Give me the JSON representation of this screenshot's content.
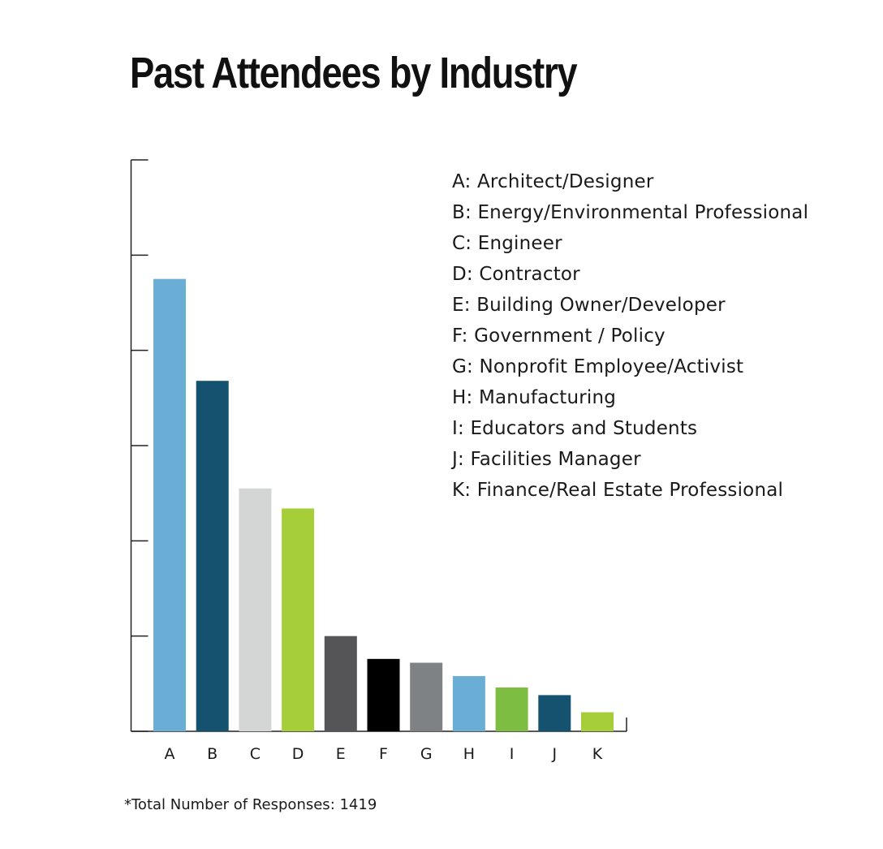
{
  "title": "Past Attendees by Industry",
  "footnote": "*Total Number of Responses: 1419",
  "chart_data": {
    "type": "bar",
    "title": "Past Attendees by Industry",
    "xlabel": "",
    "ylabel": "",
    "categories": [
      "A",
      "B",
      "C",
      "D",
      "E",
      "F",
      "G",
      "H",
      "I",
      "J",
      "K"
    ],
    "values": [
      4.75,
      3.68,
      2.55,
      2.34,
      1.0,
      0.76,
      0.72,
      0.58,
      0.46,
      0.38,
      0.2
    ],
    "colors": [
      "#6aaed6",
      "#155270",
      "#d4d5d5",
      "#a6ce39",
      "#555558",
      "#000000",
      "#7f8284",
      "#6aaed6",
      "#7dbd42",
      "#155270",
      "#a6ce39"
    ],
    "ylim": [
      0,
      6
    ],
    "grid": false,
    "legend": {
      "placement": "top-right",
      "entries": [
        "A: Architect/Designer",
        "B: Energy/Environmental Professional",
        "C: Engineer",
        "D: Contractor",
        "E: Building Owner/Developer",
        "F: Government / Policy",
        "G: Nonprofit Employee/Activist",
        "H: Manufacturing",
        "I: Educators and Students",
        "J: Facilities Manager",
        "K: Finance/Real Estate Professional"
      ]
    }
  }
}
